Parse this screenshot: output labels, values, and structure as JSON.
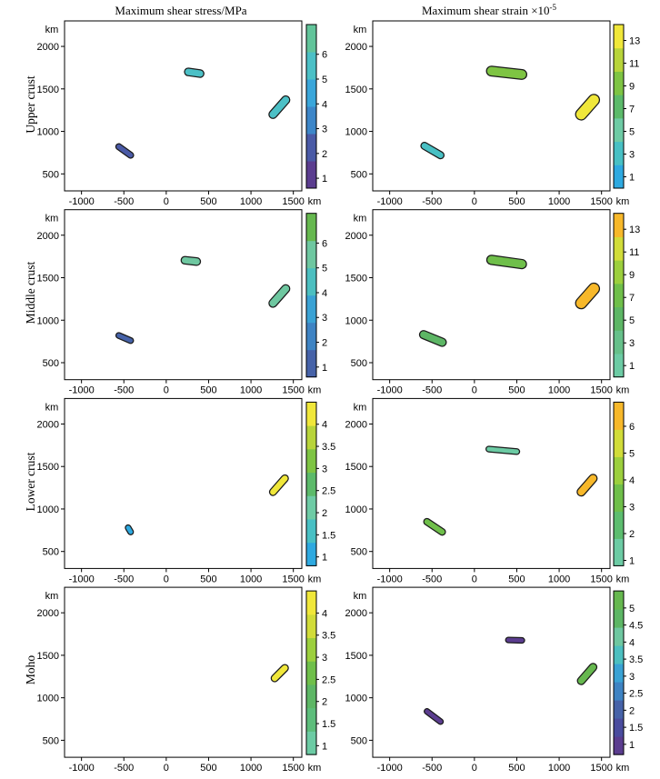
{
  "column_titles": {
    "stress": "Maximum shear stress/MPa",
    "strain_prefix": "Maximum shear strain ×10",
    "strain_exp": "-5"
  },
  "row_labels": [
    "Upper crust",
    "Middle crust",
    "Lower crust",
    "Moho"
  ],
  "axis_unit": "km",
  "chart_data": [
    {
      "id": "upper-stress",
      "type": "contour",
      "row": "Upper crust",
      "column": "Maximum shear stress/MPa",
      "xlim": [
        -1200,
        1600
      ],
      "ylim": [
        300,
        2300
      ],
      "xticks": [
        "-1000",
        "-500",
        "0",
        "500",
        "1000",
        "1500"
      ],
      "yticks": [
        "500",
        "1000",
        "1500",
        "2000"
      ],
      "colorbar": {
        "ticks": [
          "1",
          "2",
          "3",
          "4",
          "5",
          "6"
        ],
        "min": 0.6,
        "max": 7.2,
        "colors": [
          "#5b3d8f",
          "#4a5aa6",
          "#3d86c8",
          "#3aa6da",
          "#4cc0c6",
          "#62c49a"
        ]
      },
      "features": [
        {
          "x": 1260,
          "y": 1200,
          "x2": 1410,
          "y2": 1370,
          "level": 6
        },
        {
          "x": 260,
          "y": 1700,
          "x2": 400,
          "y2": 1680,
          "level": 5
        },
        {
          "x": -560,
          "y": 820,
          "x2": -420,
          "y2": 720,
          "level": 2
        }
      ]
    },
    {
      "id": "upper-strain",
      "type": "contour",
      "row": "Upper crust",
      "column": "Maximum shear strain ×10-5",
      "xlim": [
        -1200,
        1600
      ],
      "ylim": [
        300,
        2300
      ],
      "xticks": [
        "-1000",
        "-500",
        "0",
        "500",
        "1000",
        "1500"
      ],
      "yticks": [
        "500",
        "1000",
        "1500",
        "2000"
      ],
      "colorbar": {
        "ticks": [
          "1",
          "3",
          "5",
          "7",
          "9",
          "11",
          "13"
        ],
        "min": 0,
        "max": 14.4,
        "colors": [
          "#2ea9e0",
          "#48c0c4",
          "#6ecba5",
          "#5cba6a",
          "#7ec443",
          "#b8d43a",
          "#f0e73a"
        ]
      },
      "features": [
        {
          "x": 1260,
          "y": 1200,
          "x2": 1410,
          "y2": 1370,
          "level": 13
        },
        {
          "x": 200,
          "y": 1710,
          "x2": 560,
          "y2": 1670,
          "level": 9
        },
        {
          "x": -590,
          "y": 830,
          "x2": -400,
          "y2": 720,
          "level": 4
        }
      ]
    },
    {
      "id": "middle-stress",
      "type": "contour",
      "row": "Middle crust",
      "column": "Maximum shear stress/MPa",
      "xlim": [
        -1200,
        1600
      ],
      "ylim": [
        300,
        2300
      ],
      "xticks": [
        "-1000",
        "-500",
        "0",
        "500",
        "1000",
        "1500"
      ],
      "yticks": [
        "500",
        "1000",
        "1500",
        "2000"
      ],
      "colorbar": {
        "ticks": [
          "1",
          "2",
          "3",
          "4",
          "5",
          "6"
        ],
        "min": 0.6,
        "max": 7.2,
        "colors": [
          "#4662a8",
          "#3e83c3",
          "#3aa2d4",
          "#4cbfc0",
          "#6ec7a0",
          "#66b84f"
        ]
      },
      "features": [
        {
          "x": 1260,
          "y": 1200,
          "x2": 1410,
          "y2": 1370,
          "level": 6
        },
        {
          "x": 220,
          "y": 1705,
          "x2": 360,
          "y2": 1690,
          "level": 5
        },
        {
          "x": -560,
          "y": 820,
          "x2": -420,
          "y2": 760,
          "level": 1.5
        }
      ]
    },
    {
      "id": "middle-strain",
      "type": "contour",
      "row": "Middle crust",
      "column": "Maximum shear strain ×10-5",
      "xlim": [
        -1200,
        1600
      ],
      "ylim": [
        300,
        2300
      ],
      "xticks": [
        "-1000",
        "-500",
        "0",
        "500",
        "1000",
        "1500"
      ],
      "yticks": [
        "500",
        "1000",
        "1500",
        "2000"
      ],
      "colorbar": {
        "ticks": [
          "1",
          "3",
          "5",
          "7",
          "9",
          "11",
          "13"
        ],
        "min": 0,
        "max": 14.4,
        "colors": [
          "#6ccba4",
          "#66c08a",
          "#5db665",
          "#6fbf4a",
          "#9ccf3d",
          "#d1dc39",
          "#f7b82a"
        ]
      },
      "features": [
        {
          "x": 1260,
          "y": 1200,
          "x2": 1410,
          "y2": 1370,
          "level": 13
        },
        {
          "x": 200,
          "y": 1710,
          "x2": 560,
          "y2": 1660,
          "level": 8
        },
        {
          "x": -600,
          "y": 830,
          "x2": -380,
          "y2": 740,
          "level": 6
        }
      ]
    },
    {
      "id": "lower-stress",
      "type": "contour",
      "row": "Lower crust",
      "column": "Maximum shear stress/MPa",
      "xlim": [
        -1200,
        1600
      ],
      "ylim": [
        300,
        2300
      ],
      "xticks": [
        "-1000",
        "-500",
        "0",
        "500",
        "1000",
        "1500"
      ],
      "yticks": [
        "500",
        "1000",
        "1500",
        "2000"
      ],
      "colorbar": {
        "ticks": [
          "1",
          "1.5",
          "2",
          "2.5",
          "3",
          "3.5",
          "4"
        ],
        "min": 0.8,
        "max": 4.5,
        "colors": [
          "#2ea9e0",
          "#48c0c4",
          "#6ecba5",
          "#5cba6a",
          "#7ec443",
          "#b8d43a",
          "#f0e73a"
        ]
      },
      "features": [
        {
          "x": 1260,
          "y": 1200,
          "x2": 1400,
          "y2": 1360,
          "level": 4
        },
        {
          "x": -450,
          "y": 780,
          "x2": -420,
          "y2": 730,
          "level": 1.3
        }
      ]
    },
    {
      "id": "lower-strain",
      "type": "contour",
      "row": "Lower crust",
      "column": "Maximum shear strain ×10-5",
      "xlim": [
        -1200,
        1600
      ],
      "ylim": [
        300,
        2300
      ],
      "xticks": [
        "-1000",
        "-500",
        "0",
        "500",
        "1000",
        "1500"
      ],
      "yticks": [
        "500",
        "1000",
        "1500",
        "2000"
      ],
      "colorbar": {
        "ticks": [
          "1",
          "2",
          "3",
          "4",
          "5",
          "6"
        ],
        "min": 0.8,
        "max": 6.9,
        "colors": [
          "#6ccba4",
          "#5dbd6f",
          "#6fbf4a",
          "#9ccf3d",
          "#d1dc39",
          "#f7b82a"
        ]
      },
      "features": [
        {
          "x": 1260,
          "y": 1200,
          "x2": 1400,
          "y2": 1360,
          "level": 6
        },
        {
          "x": 170,
          "y": 1705,
          "x2": 500,
          "y2": 1675,
          "level": 1.5
        },
        {
          "x": -560,
          "y": 850,
          "x2": -380,
          "y2": 730,
          "level": 3
        }
      ]
    },
    {
      "id": "moho-stress",
      "type": "contour",
      "row": "Moho",
      "column": "Maximum shear stress/MPa",
      "xlim": [
        -1200,
        1600
      ],
      "ylim": [
        300,
        2300
      ],
      "xticks": [
        "-1000",
        "-500",
        "0",
        "500",
        "1000",
        "1500"
      ],
      "yticks": [
        "500",
        "1000",
        "1500",
        "2000"
      ],
      "colorbar": {
        "ticks": [
          "1",
          "1.5",
          "2",
          "2.5",
          "3",
          "3.5",
          "4"
        ],
        "min": 0.8,
        "max": 4.5,
        "colors": [
          "#6ccba4",
          "#5dbd7b",
          "#5db665",
          "#6fbf4a",
          "#9ccf3d",
          "#d1dc39",
          "#f0e73a"
        ]
      },
      "features": [
        {
          "x": 1280,
          "y": 1230,
          "x2": 1400,
          "y2": 1350,
          "level": 4
        }
      ]
    },
    {
      "id": "moho-strain",
      "type": "contour",
      "row": "Moho",
      "column": "Maximum shear strain ×10-5",
      "xlim": [
        -1200,
        1600
      ],
      "ylim": [
        300,
        2300
      ],
      "xticks": [
        "-1000",
        "-500",
        "0",
        "500",
        "1000",
        "1500"
      ],
      "yticks": [
        "500",
        "1000",
        "1500",
        "2000"
      ],
      "colorbar": {
        "ticks": [
          "1",
          "1.5",
          "2",
          "2.5",
          "3",
          "3.5",
          "4",
          "4.5",
          "5"
        ],
        "min": 0.7,
        "max": 5.5,
        "colors": [
          "#5b3d8f",
          "#4a4c9e",
          "#4662a8",
          "#3e83c3",
          "#3aa2d4",
          "#4cbfc0",
          "#6ec7a0",
          "#5db665",
          "#66b84f"
        ]
      },
      "features": [
        {
          "x": 1260,
          "y": 1200,
          "x2": 1400,
          "y2": 1360,
          "level": 5
        },
        {
          "x": 400,
          "y": 1680,
          "x2": 560,
          "y2": 1675,
          "level": 1.2
        },
        {
          "x": -560,
          "y": 840,
          "x2": -400,
          "y2": 720,
          "level": 1.2
        }
      ]
    }
  ]
}
